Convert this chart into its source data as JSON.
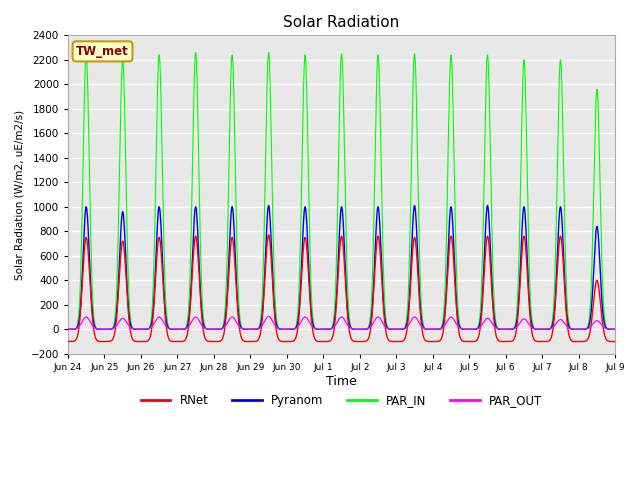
{
  "title": "Solar Radiation",
  "ylabel": "Solar Radiation (W/m2, uE/m2/s)",
  "xlabel": "Time",
  "ylim": [
    -200,
    2400
  ],
  "yticks": [
    -200,
    0,
    200,
    400,
    600,
    800,
    1000,
    1200,
    1400,
    1600,
    1800,
    2000,
    2200,
    2400
  ],
  "site_label": "TW_met",
  "colors": {
    "RNet": "#FF0000",
    "Pyranom": "#0000FF",
    "PAR_IN": "#00FF00",
    "PAR_OUT": "#FF00FF"
  },
  "fig_bg_color": "#FFFFFF",
  "plot_bg_color": "#E8E8E8",
  "grid_color": "#FFFFFF",
  "n_days": 16,
  "peaks_rnet": [
    750,
    720,
    750,
    760,
    750,
    770,
    750,
    760,
    760,
    750,
    760,
    760,
    760,
    760,
    400,
    0
  ],
  "peaks_pyranom": [
    1000,
    960,
    1000,
    1000,
    1000,
    1010,
    1000,
    1000,
    1000,
    1010,
    1000,
    1010,
    1000,
    1000,
    840,
    0
  ],
  "peaks_par_in": [
    2240,
    2200,
    2240,
    2260,
    2240,
    2260,
    2240,
    2250,
    2240,
    2250,
    2240,
    2240,
    2200,
    2200,
    1960,
    0
  ],
  "peaks_par_out": [
    100,
    90,
    100,
    100,
    100,
    105,
    100,
    100,
    100,
    100,
    100,
    90,
    85,
    80,
    70,
    0
  ],
  "night_rnet": -100,
  "legend_entries": [
    "RNet",
    "Pyranom",
    "PAR_IN",
    "PAR_OUT"
  ],
  "tick_labels": [
    "Jun 24",
    "Jun 25",
    "Jun 26",
    "Jun 27",
    "Jun 28",
    "Jun 29",
    "Jun 30",
    "Jul 1",
    "Jul 2",
    "Jul 3",
    "Jul 4",
    "Jul 5",
    "Jul 6",
    "Jul 7",
    "Jul 8",
    "Jul 9"
  ]
}
